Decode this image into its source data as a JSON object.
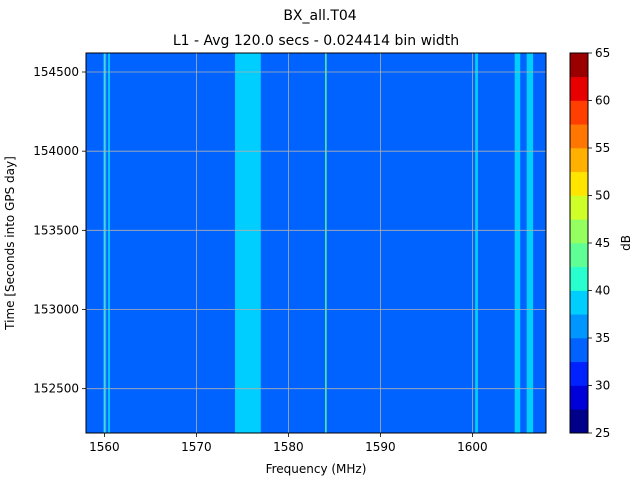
{
  "chart_data": {
    "type": "heatmap",
    "title": "BX_all.T04",
    "subtitle": "L1 - Avg 120.0 secs - 0.024414 bin width",
    "xlabel": "Frequency (MHz)",
    "ylabel": "Time [Seconds into GPS day]",
    "xlim": [
      1558,
      1608
    ],
    "ylim": [
      152220,
      154620
    ],
    "xticks": [
      1560,
      1570,
      1580,
      1590,
      1600
    ],
    "yticks": [
      152500,
      153000,
      153500,
      154000,
      154500
    ],
    "grid": true,
    "base_level_db": 32.5,
    "bands": [
      {
        "x0": 1559.9,
        "x1": 1560.2,
        "db": 37.5
      },
      {
        "x0": 1560.4,
        "x1": 1560.6,
        "db": 37.5
      },
      {
        "x0": 1574.2,
        "x1": 1577.0,
        "db": 37.5
      },
      {
        "x0": 1575.4,
        "x1": 1575.8,
        "db": 37.5
      },
      {
        "x0": 1584.0,
        "x1": 1584.15,
        "db": 42.5
      },
      {
        "x0": 1600.3,
        "x1": 1600.6,
        "db": 37.5
      },
      {
        "x0": 1604.6,
        "x1": 1605.2,
        "db": 37.5
      },
      {
        "x0": 1605.9,
        "x1": 1606.6,
        "db": 37.5
      }
    ],
    "colorbar": {
      "label": "dB",
      "min": 25,
      "max": 65,
      "ticks": [
        25,
        30,
        35,
        40,
        45,
        50,
        55,
        60,
        65
      ],
      "levels": [
        25,
        27.5,
        30,
        32.5,
        35,
        37.5,
        40,
        42.5,
        45,
        47.5,
        50,
        52.5,
        55,
        57.5,
        60,
        62.5,
        65
      ],
      "colors": [
        "#00008b",
        "#0000d9",
        "#0022ff",
        "#0062ff",
        "#0096ff",
        "#00ceff",
        "#29ffce",
        "#60ff96",
        "#96ff60",
        "#ceff29",
        "#ffe500",
        "#ffb000",
        "#ff7700",
        "#ff3e00",
        "#e80000",
        "#9b0000"
      ]
    }
  }
}
